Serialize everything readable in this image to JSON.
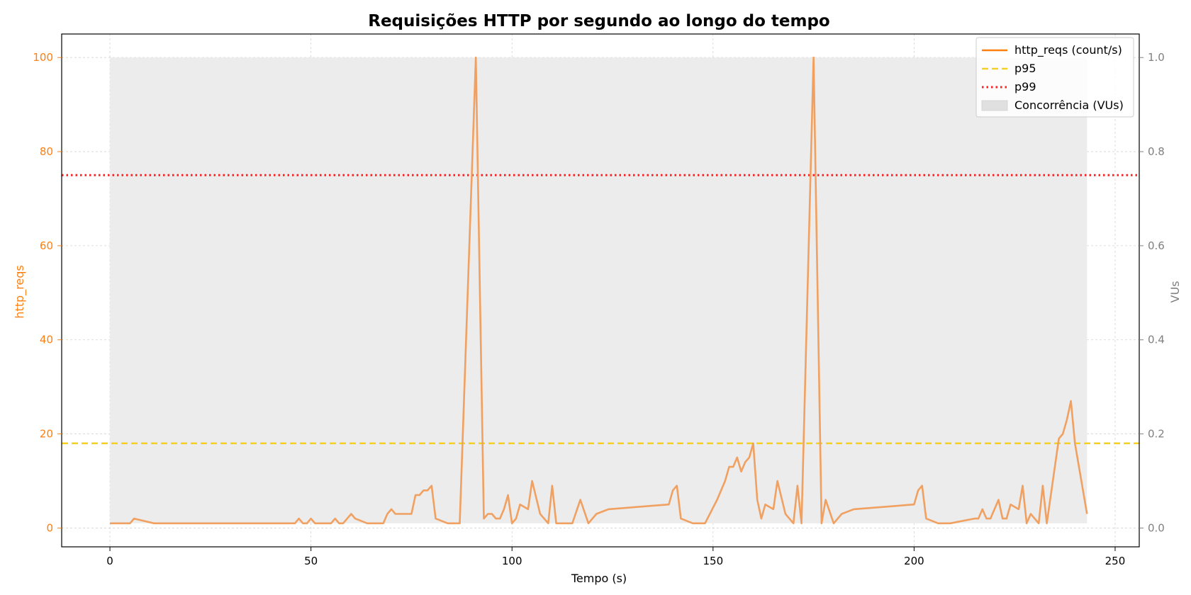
{
  "chart_data": {
    "type": "line",
    "title": "Requisições HTTP por segundo ao longo do tempo",
    "xlabel": "Tempo (s)",
    "ylabel": "http_reqs",
    "y2label": "VUs",
    "xlim": [
      -12,
      256
    ],
    "ylim": [
      -4,
      105
    ],
    "y2lim": [
      -0.04,
      1.05
    ],
    "xticks": [
      0,
      50,
      100,
      150,
      200,
      250
    ],
    "yticks": [
      0,
      20,
      40,
      60,
      80,
      100
    ],
    "y2ticks": [
      "0.0",
      "0.2",
      "0.4",
      "0.6",
      "0.8",
      "1.0"
    ],
    "y2tick_values": [
      0,
      0.2,
      0.4,
      0.6,
      0.8,
      1.0
    ],
    "grid": true,
    "legend_position": "top-right",
    "colors": {
      "http_reqs": "#f0a060",
      "http_reqs_legend": "#ff7f0e",
      "p95": "#f5d020",
      "p99": "#ff2020",
      "vus": "#ececec",
      "left_axis": "#ff7f0e",
      "right_axis": "#808080"
    },
    "legend": [
      {
        "label": "http_reqs (count/s)",
        "style": "solid"
      },
      {
        "label": "p95",
        "style": "dashed"
      },
      {
        "label": "p99",
        "style": "dotted"
      },
      {
        "label": "Concorrência (VUs)",
        "style": "patch"
      }
    ],
    "p95": 18,
    "p99": 75,
    "vus": {
      "x_start": 0,
      "x_end": 243,
      "y_bottom": 1,
      "y_top": 100
    },
    "series": [
      {
        "name": "http_reqs (count/s)",
        "points": [
          [
            0,
            1
          ],
          [
            5,
            1
          ],
          [
            6,
            2
          ],
          [
            7,
            1.8
          ],
          [
            11,
            1
          ],
          [
            20,
            1
          ],
          [
            30,
            1
          ],
          [
            40,
            1
          ],
          [
            46,
            1
          ],
          [
            47,
            2
          ],
          [
            48,
            1
          ],
          [
            49,
            1
          ],
          [
            50,
            2
          ],
          [
            51,
            1
          ],
          [
            55,
            1
          ],
          [
            56,
            2
          ],
          [
            57,
            1
          ],
          [
            58,
            1
          ],
          [
            60,
            3
          ],
          [
            61,
            2
          ],
          [
            64,
            1
          ],
          [
            68,
            1
          ],
          [
            69,
            3
          ],
          [
            70,
            4
          ],
          [
            71,
            3
          ],
          [
            75,
            3
          ],
          [
            76,
            7
          ],
          [
            77,
            7
          ],
          [
            78,
            8
          ],
          [
            79,
            8
          ],
          [
            80,
            9
          ],
          [
            81,
            2
          ],
          [
            84,
            1
          ],
          [
            87,
            1
          ],
          [
            91,
            100
          ],
          [
            93,
            2
          ],
          [
            94,
            3
          ],
          [
            95,
            3
          ],
          [
            96,
            2
          ],
          [
            97,
            2
          ],
          [
            98,
            4
          ],
          [
            99,
            7
          ],
          [
            100,
            1
          ],
          [
            101,
            2
          ],
          [
            102,
            5
          ],
          [
            104,
            4
          ],
          [
            105,
            10
          ],
          [
            107,
            3
          ],
          [
            109,
            1
          ],
          [
            110,
            9
          ],
          [
            111,
            1
          ],
          [
            115,
            1
          ],
          [
            117,
            6
          ],
          [
            119,
            1
          ],
          [
            121,
            3
          ],
          [
            124,
            4
          ],
          [
            139,
            5
          ],
          [
            140,
            8
          ],
          [
            141,
            9
          ],
          [
            142,
            2
          ],
          [
            145,
            1
          ],
          [
            148,
            1
          ],
          [
            151,
            6
          ],
          [
            153,
            10
          ],
          [
            154,
            13
          ],
          [
            155,
            13
          ],
          [
            156,
            15
          ],
          [
            157,
            12
          ],
          [
            158,
            14
          ],
          [
            159,
            15
          ],
          [
            160,
            18
          ],
          [
            161,
            6
          ],
          [
            162,
            2
          ],
          [
            163,
            5
          ],
          [
            165,
            4
          ],
          [
            166,
            10
          ],
          [
            168,
            3
          ],
          [
            170,
            1
          ],
          [
            171,
            9
          ],
          [
            172,
            1
          ],
          [
            175,
            100
          ],
          [
            177,
            1
          ],
          [
            178,
            6
          ],
          [
            180,
            1
          ],
          [
            182,
            3
          ],
          [
            185,
            4
          ],
          [
            200,
            5
          ],
          [
            201,
            8
          ],
          [
            202,
            9
          ],
          [
            203,
            2
          ],
          [
            206,
            1
          ],
          [
            209,
            1
          ],
          [
            215,
            2
          ],
          [
            216,
            2
          ],
          [
            217,
            4
          ],
          [
            218,
            2
          ],
          [
            219,
            2
          ],
          [
            221,
            6
          ],
          [
            222,
            2
          ],
          [
            223,
            2
          ],
          [
            224,
            5
          ],
          [
            226,
            4
          ],
          [
            227,
            9
          ],
          [
            228,
            1
          ],
          [
            229,
            3
          ],
          [
            231,
            1
          ],
          [
            232,
            9
          ],
          [
            233,
            1
          ],
          [
            236,
            19
          ],
          [
            237,
            20
          ],
          [
            238,
            23
          ],
          [
            239,
            27
          ],
          [
            240,
            18
          ],
          [
            243,
            3
          ]
        ]
      }
    ]
  }
}
